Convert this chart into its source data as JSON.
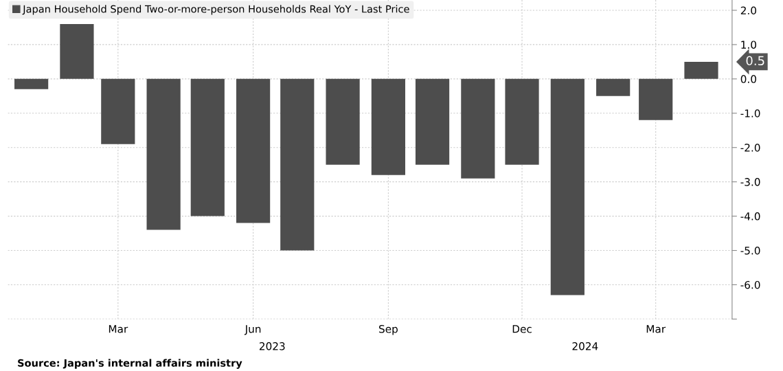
{
  "chart_data": {
    "type": "bar",
    "x": [
      "2023-01",
      "2023-02",
      "2023-03",
      "2023-04",
      "2023-05",
      "2023-06",
      "2023-07",
      "2023-08",
      "2023-09",
      "2023-10",
      "2023-11",
      "2023-12",
      "2024-01",
      "2024-02",
      "2024-03",
      "2024-04"
    ],
    "series": [
      {
        "name": "Japan Household Spend Two-or-more-person Households Real YoY - Last Price",
        "color": "#4d4d4d",
        "values": [
          -0.3,
          1.6,
          -1.9,
          -4.4,
          -4.0,
          -4.2,
          -5.0,
          -2.5,
          -2.8,
          -2.5,
          -2.9,
          -2.5,
          -6.3,
          -0.5,
          -1.2,
          0.5
        ]
      }
    ],
    "xlim": [
      "2022-12-16",
      "2024-04-22"
    ],
    "xticks": [
      {
        "value": "2023-03",
        "label": "Mar"
      },
      {
        "value": "2023-06",
        "label": "Jun"
      },
      {
        "value": "2023-09",
        "label": "Sep"
      },
      {
        "value": "2023-12",
        "label": "Dec"
      },
      {
        "value": "2024-03",
        "label": "Mar"
      }
    ],
    "ylim": [
      -7,
      2.3
    ],
    "yticks": [
      {
        "value": -7,
        "label": null
      },
      {
        "value": -6,
        "label": "-6.0"
      },
      {
        "value": -5,
        "label": "-5.0"
      },
      {
        "value": -4,
        "label": "-4.0"
      },
      {
        "value": -3,
        "label": "-3.0"
      },
      {
        "value": -2,
        "label": "-2.0"
      },
      {
        "value": -1,
        "label": "-1.0"
      },
      {
        "value": 0,
        "label": "0.0"
      },
      {
        "value": 1,
        "label": "1.0"
      },
      {
        "value": 2,
        "label": "2.0"
      }
    ],
    "grid": true,
    "legend": "top left",
    "annotations": [
      "0.5",
      "2023",
      "2024",
      "Source: Japan's internal affairs ministry"
    ]
  }
}
